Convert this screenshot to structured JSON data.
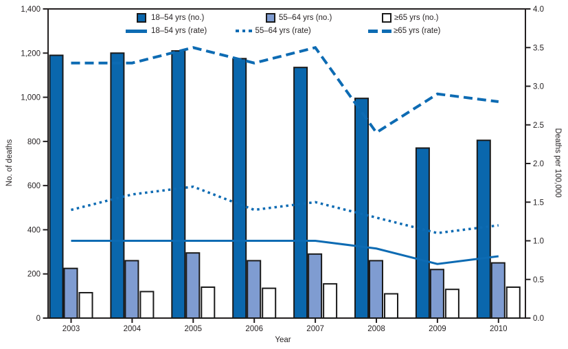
{
  "figure": {
    "xlabel": "Year",
    "ylabel_left": "No. of deaths",
    "ylabel_right": "Deaths per 100,000"
  },
  "legend": {
    "items": [
      {
        "label": "18–54 yrs (no.)",
        "swatch": "square-dark-blue"
      },
      {
        "label": "55–64 yrs (no.)",
        "swatch": "square-light-blue"
      },
      {
        "label": "≥65 yrs (no.)",
        "swatch": "square-white"
      },
      {
        "label": "18–54 yrs (rate)",
        "swatch": "solid-line"
      },
      {
        "label": "55–64 yrs (rate)",
        "swatch": "dotted-line"
      },
      {
        "label": "≥65 yrs (rate)",
        "swatch": "dashed-line"
      }
    ]
  },
  "colors": {
    "bar_dark_blue": "#0a67ad",
    "bar_light_blue": "#7f9cd1",
    "bar_white": "#ffffff",
    "bar_outline": "#1a1a1a",
    "line_blue": "#0d6bb3",
    "axis_black": "#231f20"
  },
  "chart_data": {
    "type": "combo-bar-line",
    "title": "",
    "xlabel": "Year",
    "ylabel_left": "No. of deaths",
    "ylabel_right": "Deaths per 100,000",
    "categories": [
      "2003",
      "2004",
      "2005",
      "2006",
      "2007",
      "2008",
      "2009",
      "2010"
    ],
    "ylim_left": [
      0,
      1400
    ],
    "yticks_left": [
      "0",
      "200",
      "400",
      "600",
      "800",
      "1,000",
      "1,200",
      "1,400"
    ],
    "ylim_right": [
      0,
      4.0
    ],
    "yticks_right": [
      "0.0",
      "0.5",
      "1.0",
      "1.5",
      "2.0",
      "2.5",
      "3.0",
      "3.5",
      "4.0"
    ],
    "grid": false,
    "legend_position": "top-inside",
    "bar_series": [
      {
        "id": "bars-18-54",
        "name": "18–54 yrs (no.)",
        "axis": "left",
        "fill": "#0a67ad",
        "values": [
          1190,
          1200,
          1210,
          1175,
          1135,
          995,
          770,
          805
        ]
      },
      {
        "id": "bars-55-64",
        "name": "55–64 yrs (no.)",
        "axis": "left",
        "fill": "#7f9cd1",
        "values": [
          225,
          260,
          295,
          260,
          290,
          260,
          220,
          250
        ]
      },
      {
        "id": "bars-65plus",
        "name": "≥65 yrs (no.)",
        "axis": "left",
        "fill": "#ffffff",
        "values": [
          115,
          120,
          140,
          135,
          155,
          110,
          130,
          140
        ]
      }
    ],
    "line_series": [
      {
        "id": "rate-18-54",
        "name": "18–54 yrs (rate)",
        "axis": "right",
        "style": "solid",
        "values": [
          1.0,
          1.0,
          1.0,
          1.0,
          1.0,
          0.9,
          0.7,
          0.8
        ]
      },
      {
        "id": "rate-55-64",
        "name": "55–64 yrs (rate)",
        "axis": "right",
        "style": "dotted",
        "values": [
          1.4,
          1.6,
          1.7,
          1.4,
          1.5,
          1.3,
          1.1,
          1.2
        ]
      },
      {
        "id": "rate-65plus",
        "name": "≥65 yrs (rate)",
        "axis": "right",
        "style": "dashed",
        "values": [
          3.3,
          3.3,
          3.5,
          3.3,
          3.5,
          2.4,
          2.9,
          2.8
        ]
      }
    ],
    "line_color": "#0d6bb3"
  }
}
